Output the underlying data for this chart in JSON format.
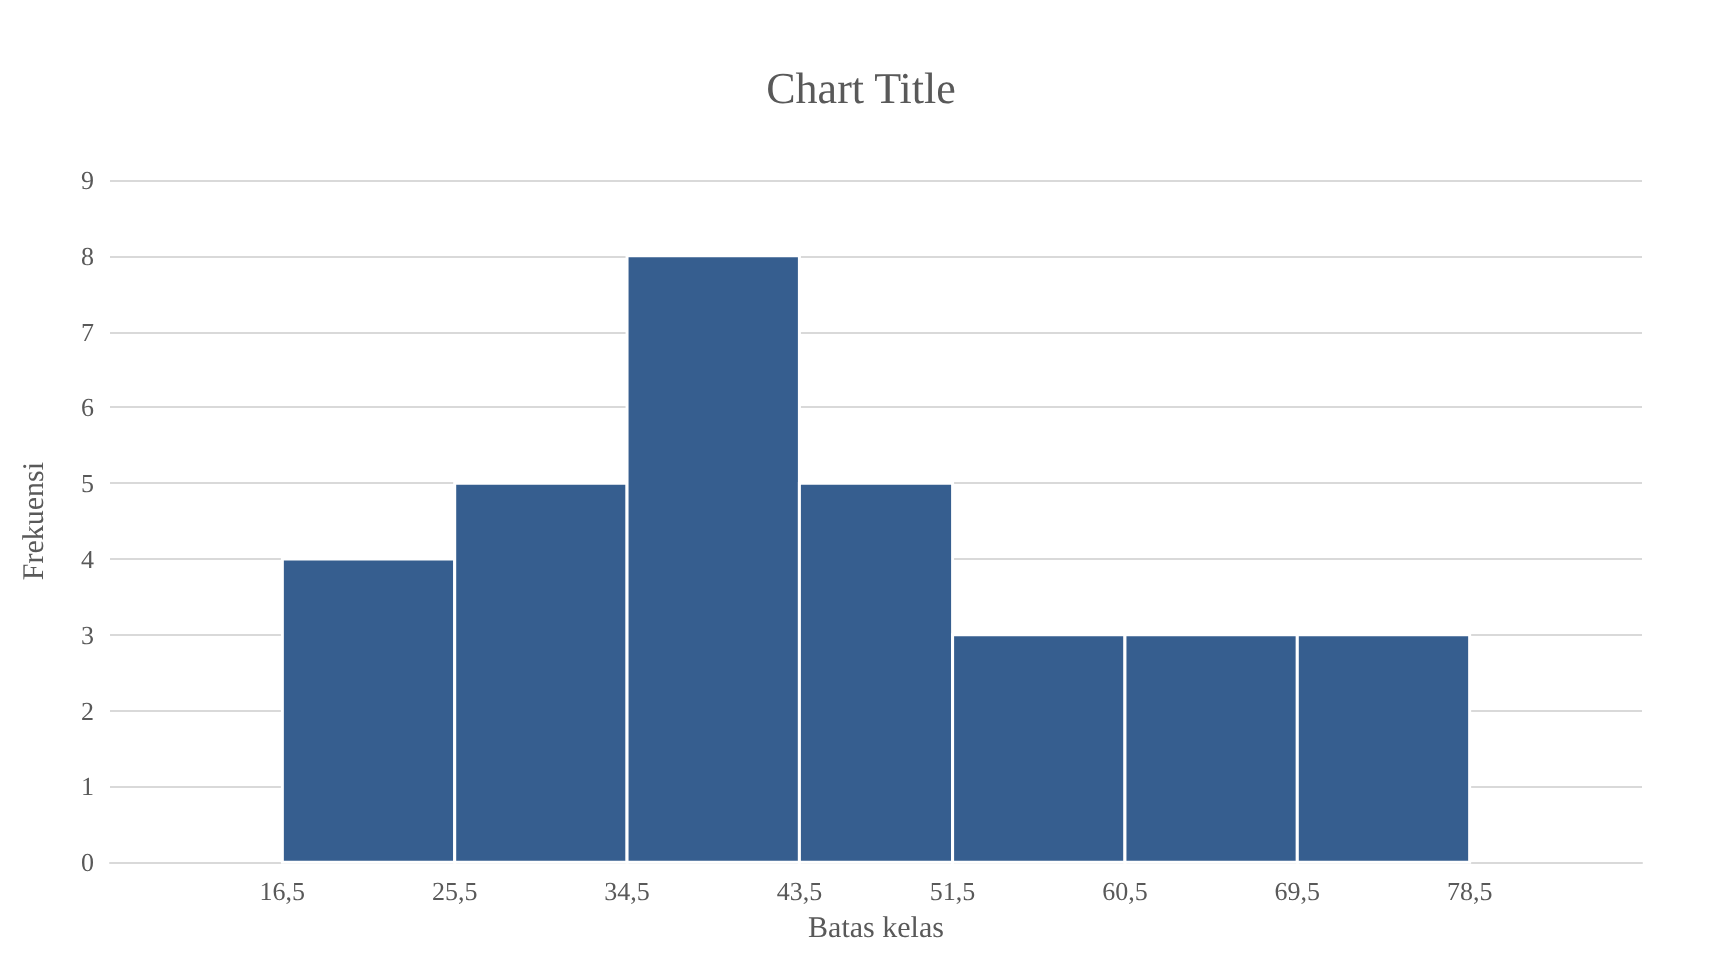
{
  "chart_data": {
    "type": "histogram",
    "title": "Chart Title",
    "xlabel": "Batas kelas",
    "ylabel": "Frekuensi",
    "bins": [
      16.5,
      25.5,
      34.5,
      43.5,
      51.5,
      60.5,
      69.5,
      78.5
    ],
    "values": [
      4,
      5,
      8,
      5,
      3,
      3,
      3
    ],
    "color": "#365e8f",
    "xlim": [
      7.5,
      87.5
    ],
    "xticks": [
      {
        "value": 16.5,
        "label": "16,5"
      },
      {
        "value": 25.5,
        "label": "25,5"
      },
      {
        "value": 34.5,
        "label": "34,5"
      },
      {
        "value": 43.5,
        "label": "43,5"
      },
      {
        "value": 51.5,
        "label": "51,5"
      },
      {
        "value": 60.5,
        "label": "60,5"
      },
      {
        "value": 69.5,
        "label": "69,5"
      },
      {
        "value": 78.5,
        "label": "78,5"
      }
    ],
    "ylim": [
      0,
      9
    ],
    "yticks": [
      0,
      1,
      2,
      3,
      4,
      5,
      6,
      7,
      8,
      9
    ],
    "grid": "y"
  }
}
